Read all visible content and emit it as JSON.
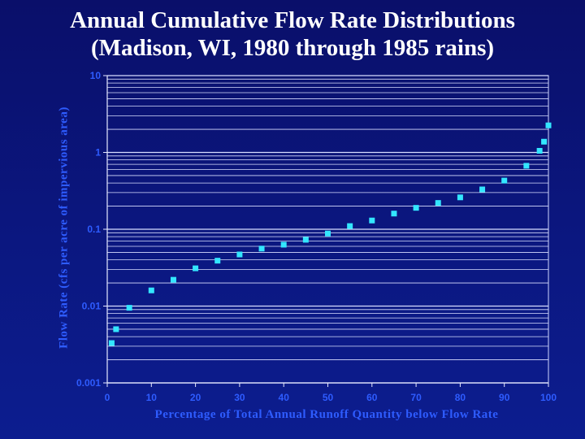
{
  "chart_data": {
    "type": "scatter",
    "title_line1": "Annual Cumulative Flow Rate Distributions",
    "title_line2": "(Madison, WI, 1980 through 1985 rains)",
    "xlabel": "Percentage of Total Annual Runoff Quantity below Flow Rate",
    "ylabel": "Flow Rate (cfs per acre of impervious area)",
    "x_scale": "linear",
    "y_scale": "log",
    "xlim": [
      0,
      100
    ],
    "ylim": [
      0.001,
      10
    ],
    "x_ticks": [
      "0",
      "10",
      "20",
      "30",
      "40",
      "50",
      "60",
      "70",
      "80",
      "90",
      "100"
    ],
    "y_ticks": [
      "0.001",
      "0.01",
      "0.1",
      "1",
      "10"
    ],
    "grid": true,
    "legend": "none",
    "marker_color": "#33e6ff",
    "points": [
      {
        "x": 1,
        "y": 0.0033
      },
      {
        "x": 2,
        "y": 0.005
      },
      {
        "x": 5,
        "y": 0.0095
      },
      {
        "x": 10,
        "y": 0.016
      },
      {
        "x": 15,
        "y": 0.022
      },
      {
        "x": 20,
        "y": 0.031
      },
      {
        "x": 25,
        "y": 0.039
      },
      {
        "x": 30,
        "y": 0.047
      },
      {
        "x": 35,
        "y": 0.056
      },
      {
        "x": 40,
        "y": 0.063
      },
      {
        "x": 45,
        "y": 0.073
      },
      {
        "x": 50,
        "y": 0.088
      },
      {
        "x": 55,
        "y": 0.11
      },
      {
        "x": 60,
        "y": 0.13
      },
      {
        "x": 65,
        "y": 0.16
      },
      {
        "x": 70,
        "y": 0.19
      },
      {
        "x": 75,
        "y": 0.22
      },
      {
        "x": 80,
        "y": 0.26
      },
      {
        "x": 85,
        "y": 0.33
      },
      {
        "x": 90,
        "y": 0.43
      },
      {
        "x": 95,
        "y": 0.67
      },
      {
        "x": 98,
        "y": 1.05
      },
      {
        "x": 99,
        "y": 1.38
      },
      {
        "x": 100,
        "y": 2.25
      }
    ]
  }
}
